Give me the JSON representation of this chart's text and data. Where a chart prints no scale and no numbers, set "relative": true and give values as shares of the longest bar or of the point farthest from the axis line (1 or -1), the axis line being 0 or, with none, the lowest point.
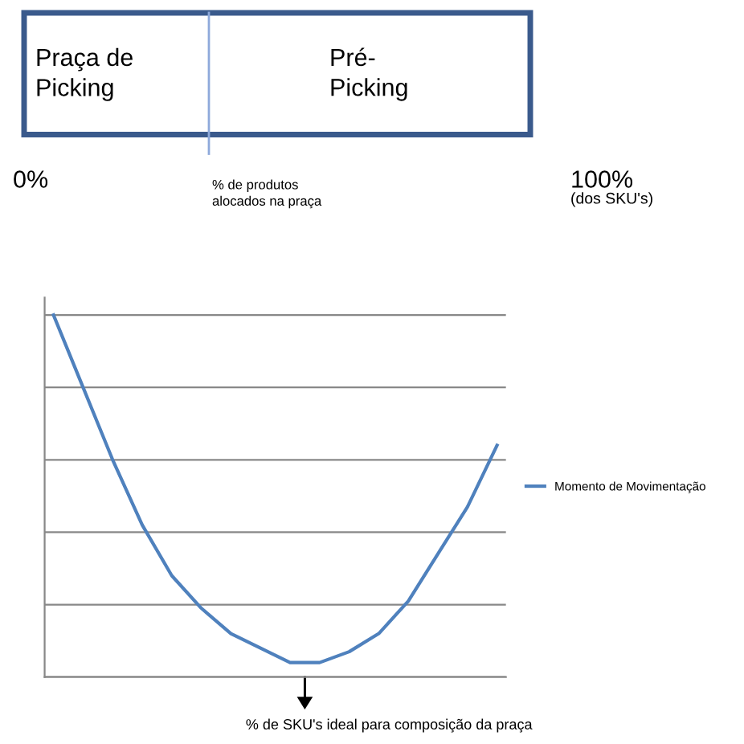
{
  "chart_data": [
    {
      "type": "other",
      "annotations": [
        "Praça de Picking",
        "Pré-Picking",
        "0%",
        "100%",
        "(dos SKU's)",
        "% de produtos alocados na praça"
      ]
    },
    {
      "type": "line",
      "relative": true,
      "categories": [
        null,
        null,
        null,
        null,
        null,
        null,
        null,
        null,
        null,
        null,
        null,
        null,
        null,
        null,
        null,
        null
      ],
      "series": [
        {
          "name": "Momento de Movimentação",
          "color": "#4f81bd",
          "values": [
            1,
            0.8,
            0.6,
            0.42,
            0.28,
            0.19,
            0.12,
            0.08,
            0.04,
            0.04,
            0.07,
            0.12,
            0.21,
            0.34,
            0.47,
            0.64
          ]
        }
      ],
      "grid": "y",
      "legend": "right",
      "annotations": [
        "% de SKU's ideal para composição da praça"
      ]
    }
  ]
}
